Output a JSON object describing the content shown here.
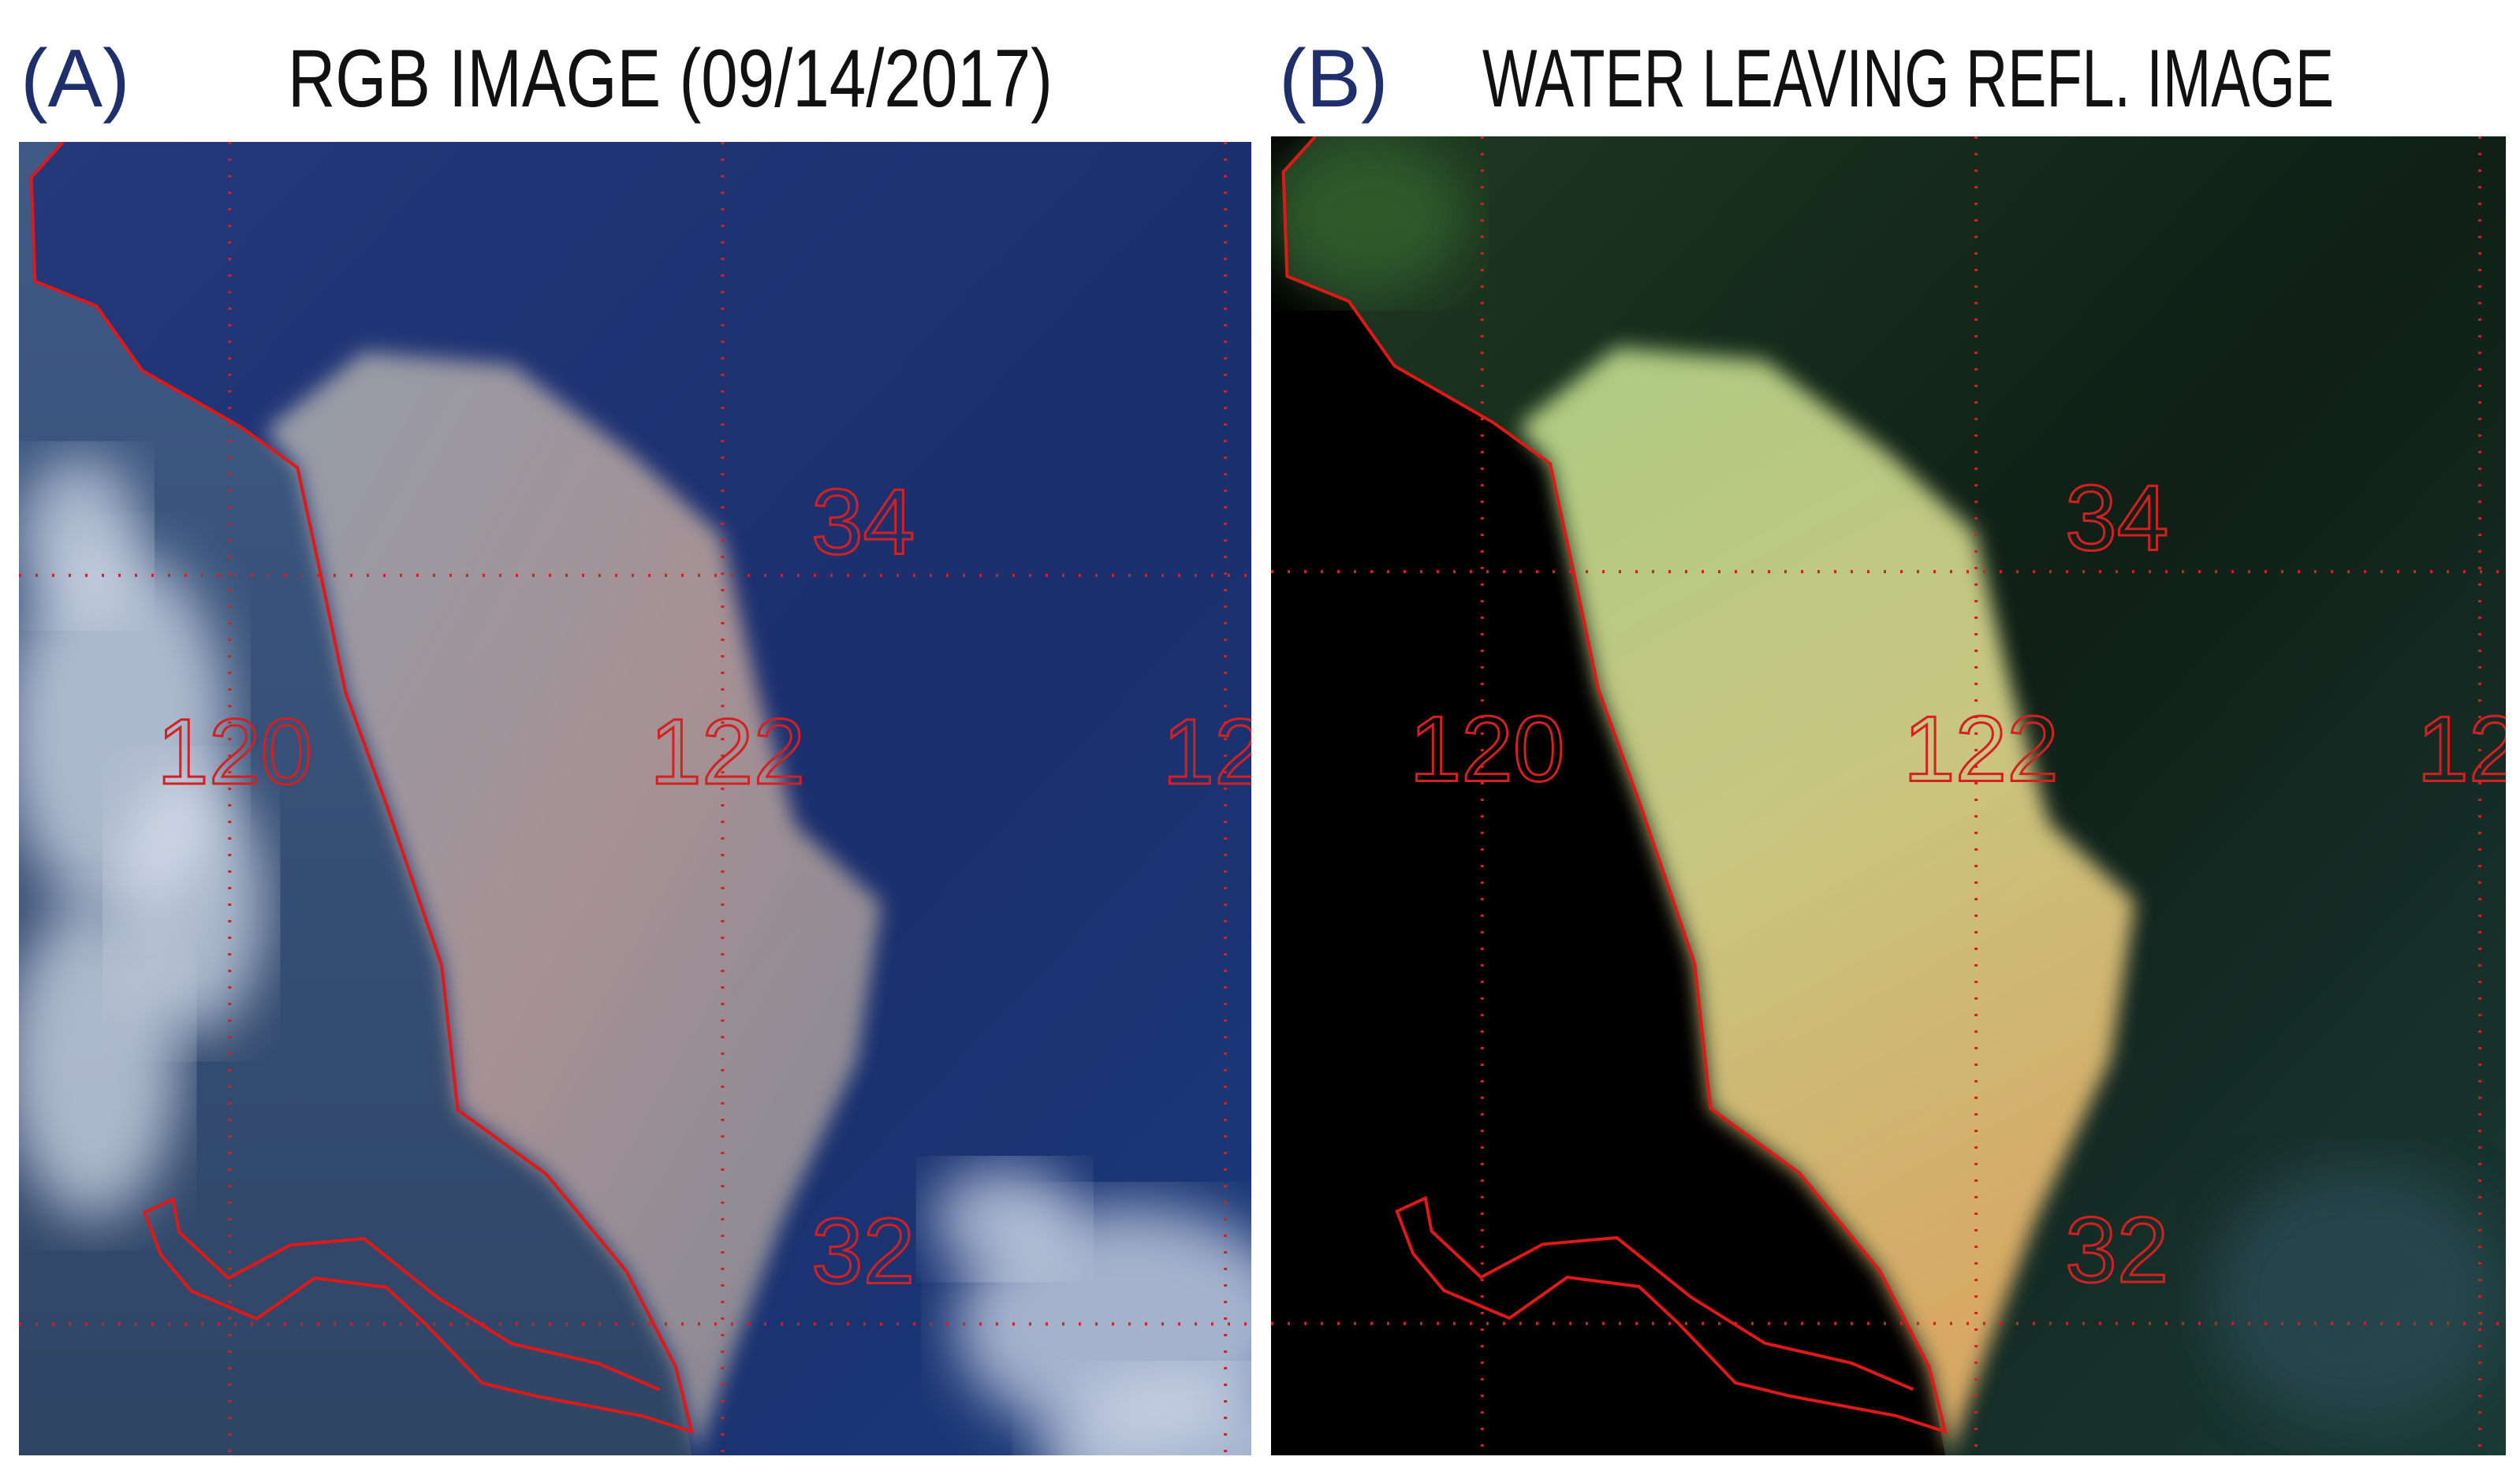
{
  "panels": [
    {
      "label": "(A)",
      "title": "RGB IMAGE (09/14/2017)",
      "longitude_labels": [
        "120",
        "122",
        "12"
      ],
      "latitude_labels": [
        "34",
        "32"
      ]
    },
    {
      "label": "(B)",
      "title": "WATER LEAVING REFL. IMAGE",
      "longitude_labels": [
        "120",
        "122",
        "12"
      ],
      "latitude_labels": [
        "34",
        "32"
      ]
    }
  ]
}
